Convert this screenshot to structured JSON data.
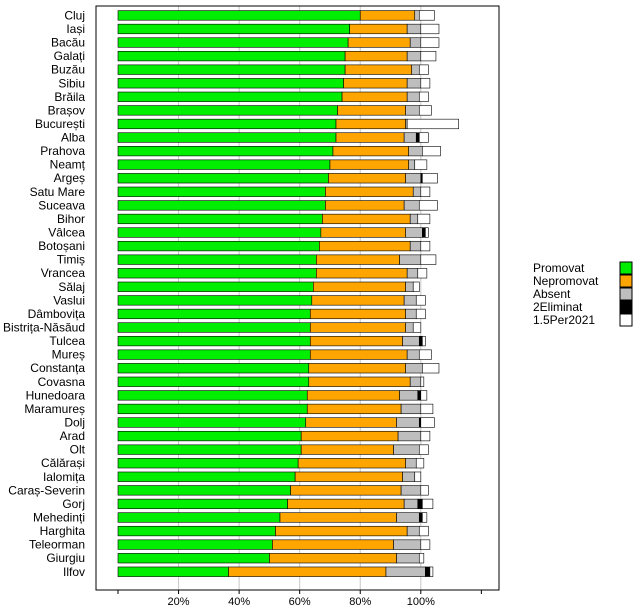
{
  "chart_data": {
    "type": "bar",
    "stacked": true,
    "orientation": "horizontal",
    "grid": true,
    "legend_position": "right",
    "xlim": [
      0,
      120
    ],
    "x_ticks": [
      0,
      20,
      40,
      60,
      80,
      100,
      120
    ],
    "x_tick_labels": [
      "",
      "20%",
      "40%",
      "60%",
      "80%",
      "100%",
      ""
    ],
    "categories": [
      "Cluj",
      "Iași",
      "Bacău",
      "Galați",
      "Buzău",
      "Sibiu",
      "Brăila",
      "Brașov",
      "București",
      "Alba",
      "Prahova",
      "Neamț",
      "Argeș",
      "Satu Mare",
      "Suceava",
      "Bihor",
      "Vâlcea",
      "Botoșani",
      "Timiș",
      "Vrancea",
      "Sălaj",
      "Vaslui",
      "Dâmbovița",
      "Bistrița-Năsăud",
      "Tulcea",
      "Mureș",
      "Constanța",
      "Covasna",
      "Hunedoara",
      "Maramureș",
      "Dolj",
      "Arad",
      "Olt",
      "Călărași",
      "Ialomița",
      "Caraș-Severin",
      "Gorj",
      "Mehedinți",
      "Harghita",
      "Teleorman",
      "Giurgiu",
      "Ilfov"
    ],
    "series": [
      {
        "name": "Promovat",
        "color": "#00ee00",
        "values": [
          80,
          76.5,
          76,
          75,
          75,
          74.5,
          74,
          72.5,
          72,
          72,
          71,
          70,
          69.5,
          68.5,
          68.5,
          67.5,
          67,
          66.5,
          65.5,
          65.5,
          64.5,
          64,
          63.5,
          63.5,
          63.5,
          63.5,
          63,
          63,
          62.5,
          62.5,
          62,
          60.5,
          60.5,
          59.5,
          58.5,
          57,
          56,
          53.5,
          52,
          51,
          50,
          36.5
        ]
      },
      {
        "name": "Nepromovat",
        "color": "#ffa500",
        "values": [
          18,
          19,
          20.5,
          20.5,
          22,
          21,
          21.5,
          22.5,
          23,
          22.5,
          25,
          26,
          25.5,
          29,
          26,
          29,
          28,
          30,
          27.5,
          30,
          30.5,
          30.5,
          31.5,
          31.5,
          30.5,
          32,
          32,
          33.5,
          30.5,
          31,
          30,
          32,
          30.5,
          35.5,
          35.5,
          36.5,
          38.5,
          38.5,
          43.5,
          40,
          42,
          52
        ]
      },
      {
        "name": "Absent",
        "color": "#bebebe",
        "values": [
          1.5,
          4.5,
          3.5,
          4.5,
          2.5,
          4.5,
          4,
          4.5,
          0.5,
          4,
          4.5,
          2,
          5,
          2.5,
          5,
          2.5,
          5.5,
          3.5,
          7,
          3.5,
          2.5,
          4,
          3.5,
          2.5,
          5.5,
          4,
          5.5,
          3.5,
          6,
          6.5,
          7.5,
          7.5,
          8.5,
          3.5,
          4,
          6.5,
          4.5,
          7.5,
          4,
          9,
          7.5,
          13
        ]
      },
      {
        "name": "2Eliminat",
        "color": "#000000",
        "values": [
          0,
          0,
          0,
          0,
          0,
          0,
          0,
          0,
          0,
          1,
          0,
          0,
          0.5,
          0,
          0,
          0,
          1,
          0,
          0,
          0,
          0,
          0,
          0,
          0,
          1,
          0,
          0,
          0,
          1,
          0,
          0.5,
          0,
          0,
          0,
          0,
          0,
          1.5,
          1,
          0,
          0,
          0,
          1.5
        ]
      },
      {
        "name": "1.5Per2021",
        "color": "#ffffff",
        "values": [
          5,
          6,
          6,
          5,
          3,
          3,
          3,
          4,
          17,
          3,
          6,
          4,
          5,
          3,
          6,
          4,
          1,
          3,
          5,
          3,
          2,
          3,
          3,
          2.5,
          1,
          4,
          5.5,
          1,
          2,
          4,
          4.5,
          3,
          3,
          2.5,
          2,
          2.5,
          3.5,
          1.5,
          3,
          3,
          1.5,
          1
        ]
      }
    ]
  }
}
